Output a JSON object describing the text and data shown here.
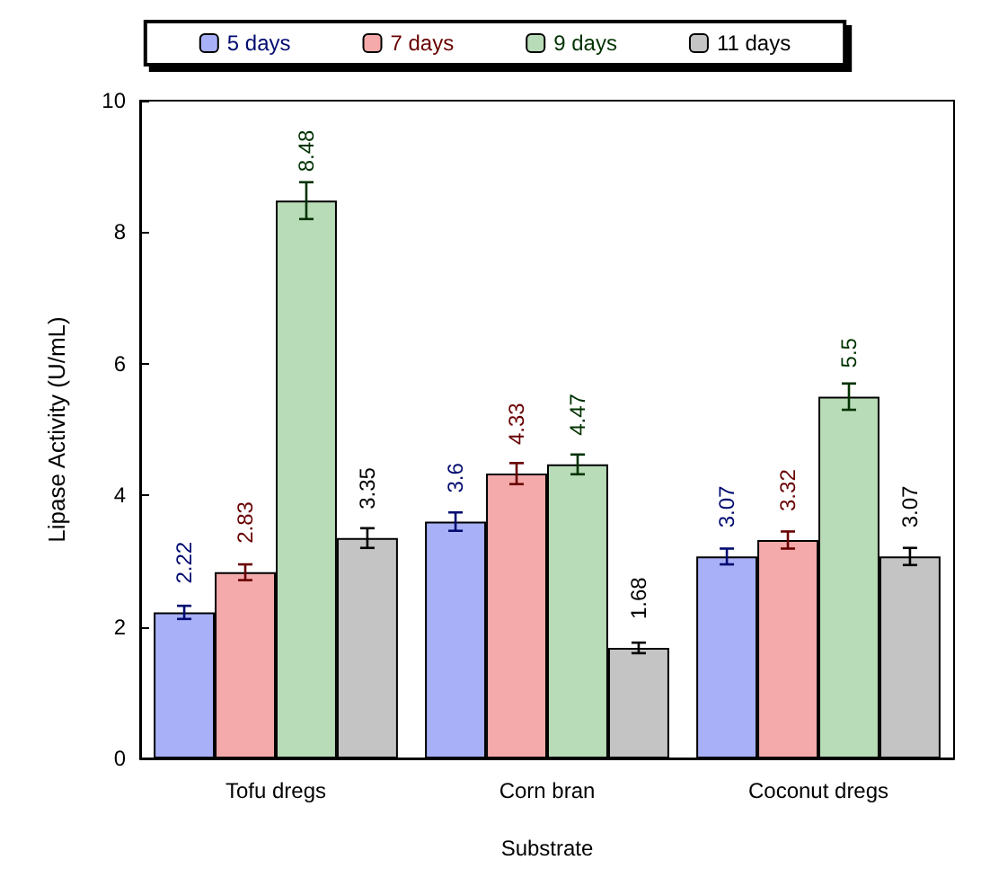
{
  "chart_data": {
    "type": "bar",
    "xlabel": "Substrate",
    "ylabel": "Lipase Activity (U/mL)",
    "categories": [
      "Tofu dregs",
      "Corn bran",
      "Coconut dregs"
    ],
    "series": [
      {
        "name": "5 days",
        "color": "#a8b0f8",
        "values": [
          2.22,
          3.6,
          3.07
        ],
        "errors": [
          0.1,
          0.14,
          0.12
        ]
      },
      {
        "name": "7 days",
        "color": "#f4aaaa",
        "values": [
          2.83,
          4.33,
          3.32
        ],
        "errors": [
          0.12,
          0.16,
          0.13
        ]
      },
      {
        "name": "9 days",
        "color": "#b8dcb8",
        "values": [
          8.48,
          4.47,
          5.5
        ],
        "errors": [
          0.28,
          0.15,
          0.2
        ]
      },
      {
        "name": "11 days",
        "color": "#c4c4c4",
        "values": [
          3.35,
          1.68,
          3.07
        ],
        "errors": [
          0.15,
          0.08,
          0.13
        ]
      }
    ],
    "ylim": [
      0,
      10
    ],
    "yticks": [
      0,
      2,
      4,
      6,
      8,
      10
    ],
    "grid": false,
    "legend": "top",
    "data_labels": true
  }
}
